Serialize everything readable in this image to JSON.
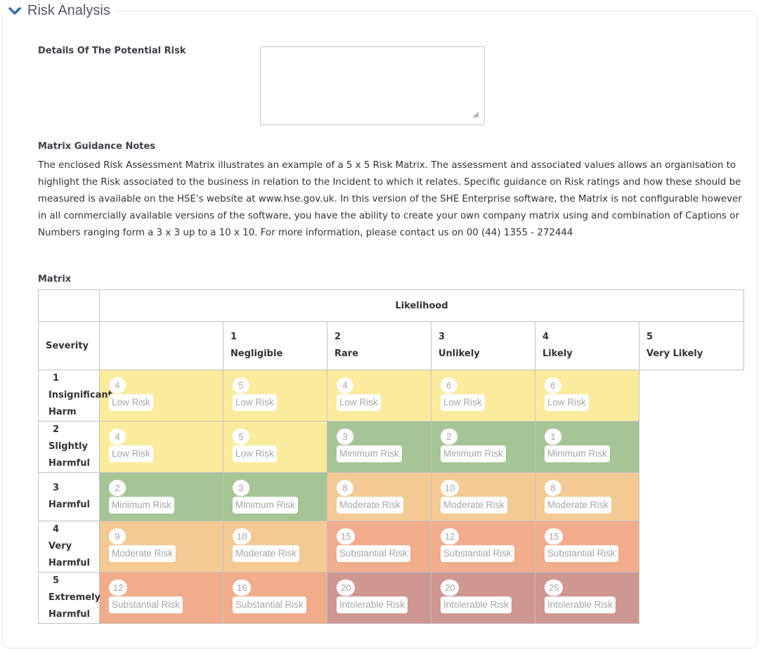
{
  "section": {
    "title": "Risk Analysis",
    "collapse_icon": "chevron-down-icon",
    "accent_color": "#2e6da4"
  },
  "details": {
    "label": "Details Of The Potential Risk",
    "value": "",
    "placeholder": ""
  },
  "guidance": {
    "heading": "Matrix Guidance Notes",
    "text": "The enclosed Risk Assessment Matrix illustrates an example of a 5 x 5 Risk Matrix. The assessment and associated values allows an organisation to highlight the Risk associated to the business in relation to the Incident to which it relates. Specific guidance on Risk ratings and how these should be measured is available on the HSE's website at www.hse.gov.uk. In this version of the SHE Enterprise software, the Matrix is not configurable however in all commercially available versions of the software, you have the ability to create your own company matrix using and combination of Captions or Numbers ranging form a 3 x 3 up to a 10 x 10. For more information, please contact us on 00 (44) 1355 - 272444"
  },
  "matrix": {
    "label": "Matrix",
    "likelihood_header": "Likelihood",
    "severity_header": "Severity",
    "columns": [
      {
        "num": "1",
        "name": "Negligible"
      },
      {
        "num": "2",
        "name": "Rare"
      },
      {
        "num": "3",
        "name": "Unlikely"
      },
      {
        "num": "4",
        "name": "Likely"
      },
      {
        "num": "5",
        "name": "Very Likely"
      }
    ],
    "rows": [
      {
        "num": "1",
        "name": "Insignificant Harm",
        "cells": [
          {
            "score": "4",
            "label": "Low Risk",
            "color": "#fbeb9c"
          },
          {
            "score": "5",
            "label": "Low Risk",
            "color": "#fbeb9c"
          },
          {
            "score": "4",
            "label": "Low Risk",
            "color": "#fbeb9c"
          },
          {
            "score": "6",
            "label": "Low Risk",
            "color": "#fbeb9c"
          },
          {
            "score": "6",
            "label": "Low Risk",
            "color": "#fbeb9c"
          }
        ]
      },
      {
        "num": "2",
        "name": "Slightly Harmful",
        "cells": [
          {
            "score": "4",
            "label": "Low Risk",
            "color": "#fbeb9c"
          },
          {
            "score": "5",
            "label": "Low Risk",
            "color": "#fbeb9c"
          },
          {
            "score": "3",
            "label": "Minimum Risk",
            "color": "#a6c597"
          },
          {
            "score": "2",
            "label": "Minimum Risk",
            "color": "#a6c597"
          },
          {
            "score": "1",
            "label": "Minimum Risk",
            "color": "#a6c597"
          }
        ]
      },
      {
        "num": "3",
        "name": "Harmful",
        "cells": [
          {
            "score": "2",
            "label": "Minimum Risk",
            "color": "#a6c597"
          },
          {
            "score": "3",
            "label": "Minimum Risk",
            "color": "#a6c597"
          },
          {
            "score": "8",
            "label": "Moderate Risk",
            "color": "#f4c994"
          },
          {
            "score": "10",
            "label": "Moderate Risk",
            "color": "#f4c994"
          },
          {
            "score": "8",
            "label": "Moderate Risk",
            "color": "#f4c994"
          }
        ]
      },
      {
        "num": "4",
        "name": "Very Harmful",
        "cells": [
          {
            "score": "9",
            "label": "Moderate Risk",
            "color": "#f4c994"
          },
          {
            "score": "10",
            "label": "Moderate Risk",
            "color": "#f4c994"
          },
          {
            "score": "15",
            "label": "Substantial Risk",
            "color": "#f1ac8c"
          },
          {
            "score": "12",
            "label": "Substantial Risk",
            "color": "#f1ac8c"
          },
          {
            "score": "15",
            "label": "Substantial Risk",
            "color": "#f1ac8c"
          }
        ]
      },
      {
        "num": "5",
        "name": "Extremely Harmful",
        "cells": [
          {
            "score": "12",
            "label": "Substantial Risk",
            "color": "#f1ac8c"
          },
          {
            "score": "16",
            "label": "Substantial Risk",
            "color": "#f1ac8c"
          },
          {
            "score": "20",
            "label": "Intolerable Risk",
            "color": "#cf9791"
          },
          {
            "score": "20",
            "label": "Intolerable Risk",
            "color": "#cf9791"
          },
          {
            "score": "25",
            "label": "Intolerable Risk",
            "color": "#cf9791"
          }
        ]
      }
    ]
  }
}
